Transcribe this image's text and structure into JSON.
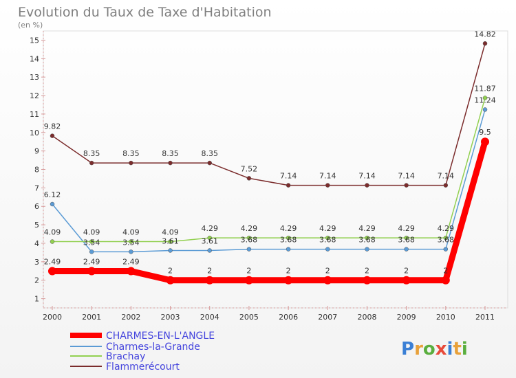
{
  "chart_data": {
    "type": "line",
    "title": "Evolution du Taux de Taxe d'Habitation",
    "subtitle": "(en %)",
    "x": [
      "2000",
      "2001",
      "2002",
      "2003",
      "2004",
      "2005",
      "2006",
      "2007",
      "2008",
      "2009",
      "2010",
      "2011"
    ],
    "y_ticks": [
      "1",
      "2",
      "3",
      "4",
      "5",
      "6",
      "7",
      "8",
      "9",
      "10",
      "11",
      "12",
      "13",
      "14",
      "15"
    ],
    "ylim": [
      0.5,
      15.5
    ],
    "series": [
      {
        "name": "CHARMES-EN-L'ANGLE",
        "color": "#ff0000",
        "values": [
          2.49,
          2.49,
          2.49,
          2,
          2,
          2,
          2,
          2,
          2,
          2,
          2,
          9.5
        ],
        "labels": [
          "2.49",
          "2.49",
          "2.49",
          "2",
          "2",
          "2",
          "2",
          "2",
          "2",
          "2",
          "2",
          "9.5"
        ]
      },
      {
        "name": "Charmes-la-Grande",
        "color": "#5b9bd5",
        "values": [
          6.12,
          3.54,
          3.54,
          3.61,
          3.61,
          3.68,
          3.68,
          3.68,
          3.68,
          3.68,
          3.68,
          11.24
        ],
        "labels": [
          "6.12",
          "3.54",
          "3.54",
          "3.61",
          "3.61",
          "3.68",
          "3.68",
          "3.68",
          "3.68",
          "3.68",
          "3.68",
          "11.24"
        ]
      },
      {
        "name": "Brachay",
        "color": "#92d050",
        "values": [
          4.09,
          4.09,
          4.09,
          4.09,
          4.29,
          4.29,
          4.29,
          4.29,
          4.29,
          4.29,
          4.29,
          11.87
        ],
        "labels": [
          "4.09",
          "4.09",
          "4.09",
          "4.09",
          "4.29",
          "4.29",
          "4.29",
          "4.29",
          "4.29",
          "4.29",
          "4.29",
          "11.87"
        ]
      },
      {
        "name": "Flammerécourt",
        "color": "#7b2c2c",
        "values": [
          9.82,
          8.35,
          8.35,
          8.35,
          8.35,
          7.52,
          7.14,
          7.14,
          7.14,
          7.14,
          7.14,
          14.82
        ],
        "labels": [
          "9.82",
          "8.35",
          "8.35",
          "8.35",
          "8.35",
          "7.52",
          "7.14",
          "7.14",
          "7.14",
          "7.14",
          "7.14",
          "14.82"
        ]
      }
    ],
    "grid": false,
    "legend_placement": "bottom-left"
  },
  "logo": {
    "letters": [
      "P",
      "r",
      "o",
      "x",
      "i",
      "t",
      "i"
    ],
    "colors": [
      "#3a7fd5",
      "#e8a13a",
      "#5aae3e",
      "#e84a3a",
      "#3a7fd5",
      "#e8a13a",
      "#5aae3e"
    ]
  }
}
